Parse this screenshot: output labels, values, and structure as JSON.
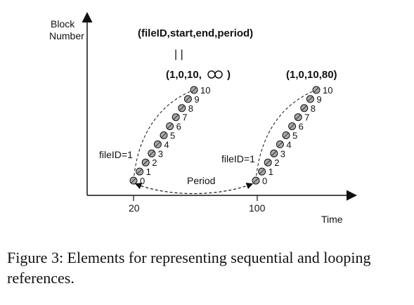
{
  "axes": {
    "y_label_line1": "Block",
    "y_label_line2": "Number",
    "x_label": "Time"
  },
  "x_ticks": [
    "20",
    "100"
  ],
  "header": {
    "tuple_format": "(fileID,start,end,period)",
    "separator": "| |"
  },
  "reference1": {
    "tuple": "(1,0,10,",
    "tuple_end": ")",
    "file_label": "fileID=1",
    "blocks": [
      "0",
      "1",
      "2",
      "3",
      "4",
      "5",
      "6",
      "7",
      "8",
      "9",
      "10"
    ]
  },
  "reference2": {
    "tuple": "(1,0,10,80)",
    "file_label": "fileID=1",
    "blocks": [
      "0",
      "1",
      "2",
      "3",
      "4",
      "5",
      "6",
      "7",
      "8",
      "9",
      "10"
    ]
  },
  "period_label": "Period",
  "caption": "Figure 3: Elements for representing sequential and looping references."
}
